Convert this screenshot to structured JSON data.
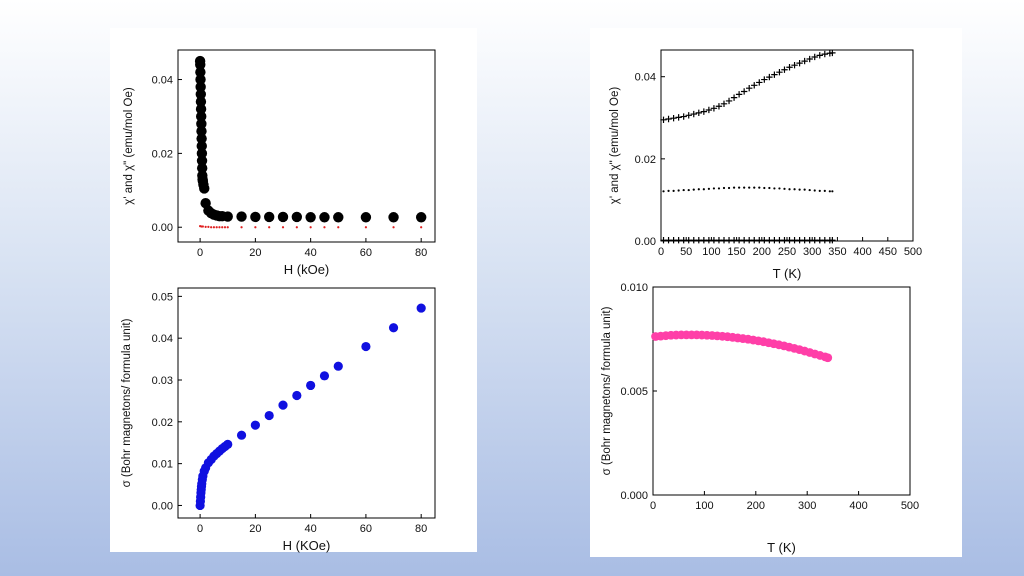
{
  "chart_data": [
    {
      "id": "chi-vs-H",
      "type": "scatter",
      "title": "",
      "xlabel": "H (kOe)",
      "ylabel": "χ' and χ\" (emu/mol Oe)",
      "xlim": [
        -8,
        85
      ],
      "ylim": [
        -0.004,
        0.048
      ],
      "xticks": [
        0,
        20,
        40,
        60,
        80
      ],
      "yticks": [
        0.0,
        0.02,
        0.04
      ],
      "ytick_labels": [
        "0.00",
        "0.02",
        "0.04"
      ],
      "grid": false,
      "series": [
        {
          "marker_color": "#000000",
          "marker": "circle",
          "x": [
            0,
            0.05,
            0.1,
            0.15,
            0.2,
            0.25,
            0.3,
            0.35,
            0.4,
            0.45,
            0.5,
            0.55,
            0.6,
            0.65,
            0.7,
            0.75,
            0.8,
            0.9,
            1.0,
            1.2,
            1.5,
            2,
            3,
            4,
            5,
            6,
            7,
            8,
            10,
            15,
            20,
            25,
            30,
            35,
            40,
            45,
            50,
            60,
            70,
            80
          ],
          "y": [
            0.045,
            0.044,
            0.042,
            0.04,
            0.038,
            0.036,
            0.034,
            0.032,
            0.03,
            0.028,
            0.026,
            0.024,
            0.022,
            0.02,
            0.018,
            0.016,
            0.014,
            0.013,
            0.0125,
            0.0115,
            0.0105,
            0.0065,
            0.0045,
            0.0038,
            0.0034,
            0.0032,
            0.003,
            0.003,
            0.0029,
            0.0029,
            0.0028,
            0.0028,
            0.0028,
            0.0028,
            0.0027,
            0.0027,
            0.0027,
            0.0027,
            0.0027,
            0.0027
          ]
        },
        {
          "marker_color": "#e02020",
          "marker": "small-dot",
          "x": [
            0,
            0.5,
            1,
            2,
            3,
            4,
            5,
            6,
            7,
            8,
            9,
            10,
            15,
            20,
            25,
            30,
            35,
            40,
            45,
            50,
            60,
            70,
            80
          ],
          "y": [
            0.0003,
            0.0002,
            0.0002,
            0.0001,
            0.0001,
            0,
            0,
            0,
            0,
            0,
            0,
            0,
            0,
            0,
            0,
            0,
            0,
            0,
            0,
            0,
            0,
            0,
            0
          ]
        }
      ]
    },
    {
      "id": "sigma-vs-H",
      "type": "scatter",
      "title": "",
      "xlabel": "H (KOe)",
      "ylabel": "σ (Bohr magnetons/ formula unit)",
      "xlim": [
        -8,
        85
      ],
      "ylim": [
        -0.003,
        0.052
      ],
      "xticks": [
        0,
        20,
        40,
        60,
        80
      ],
      "yticks": [
        0.0,
        0.01,
        0.02,
        0.03,
        0.04,
        0.05
      ],
      "ytick_labels": [
        "0.00",
        "0.01",
        "0.02",
        "0.03",
        "0.04",
        "0.05"
      ],
      "grid": false,
      "series": [
        {
          "marker_color": "#1010e0",
          "marker": "circle",
          "x": [
            0,
            0.1,
            0.2,
            0.3,
            0.4,
            0.5,
            0.6,
            0.8,
            1.0,
            1.5,
            2,
            3,
            4,
            5,
            6,
            7,
            8,
            9,
            10,
            15,
            20,
            25,
            30,
            35,
            40,
            45,
            50,
            60,
            70,
            80
          ],
          "y": [
            0.0,
            0.001,
            0.002,
            0.003,
            0.0038,
            0.0045,
            0.0052,
            0.0062,
            0.007,
            0.0082,
            0.009,
            0.0102,
            0.011,
            0.0118,
            0.0124,
            0.013,
            0.0136,
            0.0141,
            0.0146,
            0.0168,
            0.0192,
            0.0215,
            0.024,
            0.0263,
            0.0287,
            0.031,
            0.0333,
            0.038,
            0.0425,
            0.0472
          ]
        }
      ]
    },
    {
      "id": "chi-vs-T",
      "type": "scatter",
      "title": "",
      "xlabel": "T (K)",
      "ylabel": "χ' and χ\" (emu/mol Oe)",
      "xlim": [
        0,
        500
      ],
      "ylim": [
        0,
        0.0465
      ],
      "xticks": [
        0,
        50,
        100,
        150,
        200,
        250,
        300,
        350,
        400,
        450,
        500
      ],
      "yticks": [
        0.0,
        0.02,
        0.04
      ],
      "ytick_labels": [
        "0.00",
        "0.02",
        "0.04"
      ],
      "grid": false,
      "series": [
        {
          "marker_color": "#000000",
          "marker": "plus",
          "x": [
            5,
            15,
            25,
            35,
            45,
            55,
            65,
            75,
            85,
            95,
            105,
            115,
            125,
            135,
            145,
            155,
            165,
            175,
            185,
            195,
            205,
            215,
            225,
            235,
            245,
            255,
            265,
            275,
            285,
            295,
            305,
            315,
            325,
            335,
            340
          ],
          "y": [
            0.0295,
            0.0297,
            0.0299,
            0.0301,
            0.0303,
            0.0306,
            0.0309,
            0.0312,
            0.0315,
            0.0319,
            0.0323,
            0.0328,
            0.0334,
            0.0341,
            0.0349,
            0.0357,
            0.0364,
            0.0372,
            0.0379,
            0.0386,
            0.0393,
            0.0399,
            0.0405,
            0.0411,
            0.0417,
            0.0423,
            0.0428,
            0.0433,
            0.0438,
            0.0443,
            0.0448,
            0.0452,
            0.0455,
            0.0457,
            0.0458
          ]
        },
        {
          "marker_color": "#000000",
          "marker": "small-dot",
          "x": [
            5,
            15,
            25,
            35,
            45,
            55,
            65,
            75,
            85,
            95,
            105,
            115,
            125,
            135,
            145,
            155,
            165,
            175,
            185,
            195,
            205,
            215,
            225,
            235,
            245,
            255,
            265,
            275,
            285,
            295,
            305,
            315,
            325,
            335,
            340
          ],
          "y": [
            0.0121,
            0.0122,
            0.0122,
            0.0123,
            0.0124,
            0.0124,
            0.0125,
            0.0126,
            0.0126,
            0.0127,
            0.0128,
            0.0128,
            0.0129,
            0.0129,
            0.013,
            0.013,
            0.013,
            0.013,
            0.013,
            0.013,
            0.0129,
            0.0129,
            0.0128,
            0.0128,
            0.0127,
            0.0126,
            0.0126,
            0.0125,
            0.0125,
            0.0124,
            0.0123,
            0.0122,
            0.0122,
            0.0121,
            0.0121
          ]
        },
        {
          "marker_color": "#000000",
          "marker": "plus",
          "x": [
            5,
            15,
            25,
            35,
            45,
            55,
            65,
            75,
            85,
            95,
            105,
            115,
            125,
            135,
            145,
            155,
            165,
            175,
            185,
            195,
            205,
            215,
            225,
            235,
            245,
            255,
            265,
            275,
            285,
            295,
            305,
            315,
            325,
            335,
            340
          ],
          "y": [
            0.0002,
            0.0002,
            0.0002,
            0.0002,
            0.0002,
            0.0002,
            0.0002,
            0.0002,
            0.0002,
            0.0002,
            0.0002,
            0.0002,
            0.0002,
            0.0002,
            0.0002,
            0.0002,
            0.0002,
            0.0002,
            0.0002,
            0.0002,
            0.0002,
            0.0002,
            0.0002,
            0.0002,
            0.0002,
            0.0002,
            0.0002,
            0.0002,
            0.0002,
            0.0002,
            0.0002,
            0.0002,
            0.0002,
            0.0002,
            0.0002
          ]
        }
      ]
    },
    {
      "id": "sigma-vs-T",
      "type": "scatter",
      "title": "",
      "xlabel": "T (K)",
      "ylabel": "σ (Bohr magnetons/ formula unit)",
      "xlim": [
        0,
        500
      ],
      "ylim": [
        0,
        0.01
      ],
      "xticks": [
        0,
        100,
        200,
        300,
        400,
        500
      ],
      "yticks": [
        0.0,
        0.005,
        0.01
      ],
      "ytick_labels": [
        "0.000",
        "0.005",
        "0.010"
      ],
      "grid": false,
      "series": [
        {
          "marker_color": "#ff3fa8",
          "marker": "circle",
          "x": [
            5,
            15,
            25,
            35,
            45,
            55,
            65,
            75,
            85,
            95,
            105,
            115,
            125,
            135,
            145,
            155,
            165,
            175,
            185,
            195,
            205,
            215,
            225,
            235,
            245,
            255,
            265,
            275,
            285,
            295,
            305,
            315,
            325,
            335,
            340
          ],
          "y": [
            0.00762,
            0.00764,
            0.00766,
            0.00768,
            0.00769,
            0.0077,
            0.0077,
            0.0077,
            0.0077,
            0.00769,
            0.00768,
            0.00767,
            0.00765,
            0.00763,
            0.00761,
            0.00758,
            0.00755,
            0.00752,
            0.00749,
            0.00745,
            0.00741,
            0.00737,
            0.00732,
            0.00727,
            0.00722,
            0.00717,
            0.00711,
            0.00705,
            0.00699,
            0.00692,
            0.00685,
            0.00678,
            0.00671,
            0.00664,
            0.0066
          ]
        }
      ]
    }
  ]
}
